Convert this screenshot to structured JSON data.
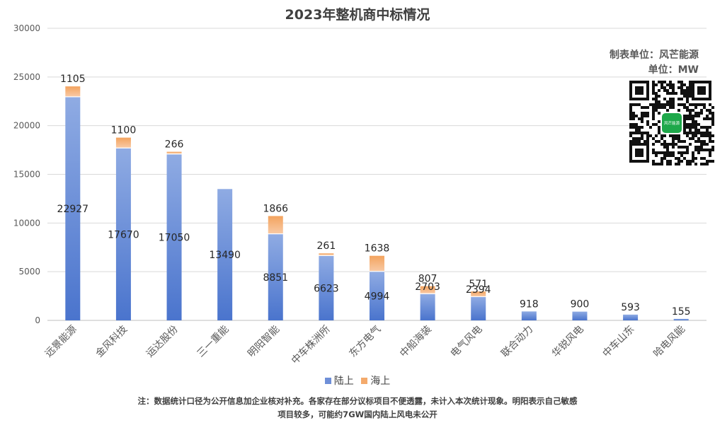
{
  "chart_data": {
    "type": "bar",
    "stacked": true,
    "title": "2023年整机商中标情况",
    "categories": [
      "远景能源",
      "金风科技",
      "运达股份",
      "三一重能",
      "明阳智能",
      "中车株洲所",
      "东方电气",
      "中船海装",
      "电气风电",
      "联合动力",
      "华锐风电",
      "中车山东",
      "哈电风能"
    ],
    "series": [
      {
        "name": "陆上",
        "values": [
          22927,
          17670,
          17050,
          13490,
          8851,
          6623,
          4994,
          2703,
          2394,
          918,
          900,
          593,
          155
        ]
      },
      {
        "name": "海上",
        "values": [
          1105,
          1100,
          266,
          0,
          1866,
          261,
          1638,
          807,
          571,
          0,
          0,
          0,
          0
        ]
      }
    ],
    "ylim": [
      0,
      30000
    ],
    "yticks": [
      0,
      5000,
      10000,
      15000,
      20000,
      25000,
      30000
    ],
    "grid": true,
    "legend": "bottom"
  },
  "source": {
    "maker": "制表单位：风芒能源",
    "unit": "单位：MW"
  },
  "qr_label": "风芒能源",
  "note": {
    "line1": "注：数据统计口径为公开信息加企业核对补充。各家存在部分议标项目不便透露，未计入本次统计现象。明阳表示自己敏感",
    "line2": "项目较多，可能约7GW国内陆上风电未公开"
  },
  "colors": {
    "onshore_top": "#8fabe3",
    "onshore_bottom": "#4a74cd",
    "offshore_top": "#f3a35e",
    "offshore_bottom": "#f8c9a4",
    "grid": "#d9d9d9",
    "axis_text": "#595959",
    "label_text": "#262626"
  }
}
